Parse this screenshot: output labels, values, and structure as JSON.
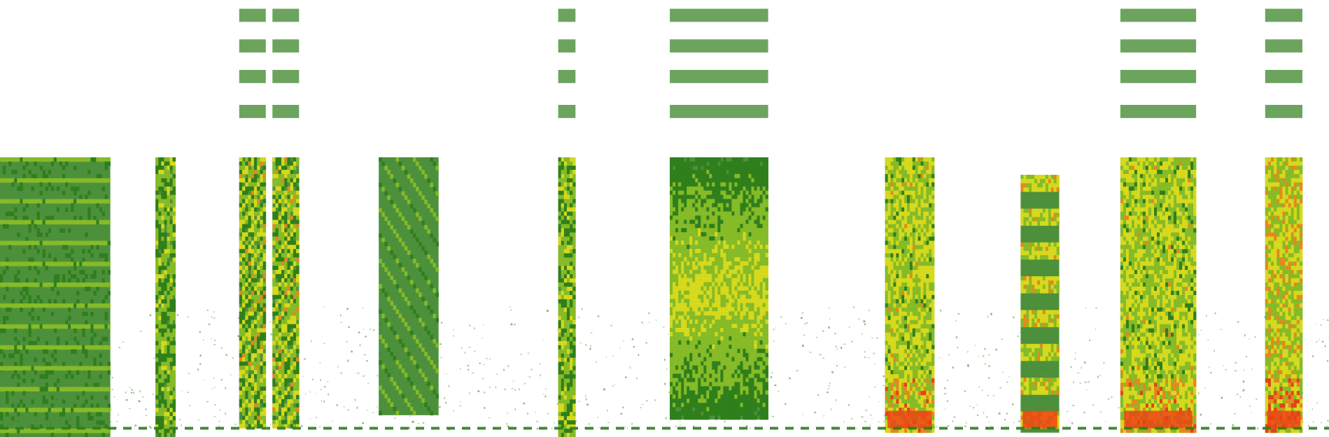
{
  "chart_data": {
    "type": "heatmap",
    "title": "",
    "xlabel": "",
    "ylabel": "",
    "axes_visible": false,
    "grid": false,
    "background": "#ffffff",
    "colors": {
      "low": "#2e7d1a",
      "mid": "#8cbf26",
      "high_yellow": "#e3e01a",
      "peak_orange": "#f08a1c",
      "peak_red": "#f03c14"
    },
    "frequency_range": [
      0,
      1
    ],
    "time_range": [
      0,
      1
    ],
    "events": [
      {
        "id": "e1",
        "t_start": 0.0,
        "t_end": 0.083,
        "f_low": 0.0,
        "f_high": 0.64,
        "peak": 0.55,
        "texture": "tonal-bars"
      },
      {
        "id": "e2",
        "t_start": 0.117,
        "t_end": 0.132,
        "f_low": 0.0,
        "f_high": 0.65,
        "peak": 0.65,
        "texture": "narrow"
      },
      {
        "id": "e3",
        "t_start": 0.18,
        "t_end": 0.2,
        "f_low": 0.02,
        "f_high": 0.99,
        "peak": 0.85,
        "texture": "harmonic"
      },
      {
        "id": "e4",
        "t_start": 0.205,
        "t_end": 0.225,
        "f_low": 0.02,
        "f_high": 0.99,
        "peak": 0.85,
        "texture": "harmonic"
      },
      {
        "id": "e5",
        "t_start": 0.285,
        "t_end": 0.33,
        "f_low": 0.05,
        "f_high": 0.64,
        "peak": 0.55,
        "texture": "wavy-chirp"
      },
      {
        "id": "e6",
        "t_start": 0.42,
        "t_end": 0.433,
        "f_low": 0.0,
        "f_high": 0.96,
        "peak": 0.7,
        "texture": "narrow"
      },
      {
        "id": "e7",
        "t_start": 0.504,
        "t_end": 0.578,
        "f_low": 0.04,
        "f_high": 0.99,
        "peak": 0.9,
        "texture": "broadband"
      },
      {
        "id": "e8",
        "t_start": 0.666,
        "t_end": 0.703,
        "f_low": 0.01,
        "f_high": 0.64,
        "peak": 0.9,
        "texture": "dense"
      },
      {
        "id": "e9",
        "t_start": 0.768,
        "t_end": 0.797,
        "f_low": 0.01,
        "f_high": 0.6,
        "peak": 0.85,
        "texture": "segmented"
      },
      {
        "id": "e10",
        "t_start": 0.843,
        "t_end": 0.9,
        "f_low": 0.01,
        "f_high": 0.99,
        "peak": 0.9,
        "texture": "dense"
      },
      {
        "id": "e11",
        "t_start": 0.952,
        "t_end": 0.98,
        "f_low": 0.01,
        "f_high": 0.99,
        "peak": 1.0,
        "texture": "dense"
      }
    ],
    "noise_floor_band": {
      "f_low": 0.02,
      "f_high": 0.3,
      "density": 0.35
    },
    "baseline_line": {
      "f": 0.02
    }
  }
}
